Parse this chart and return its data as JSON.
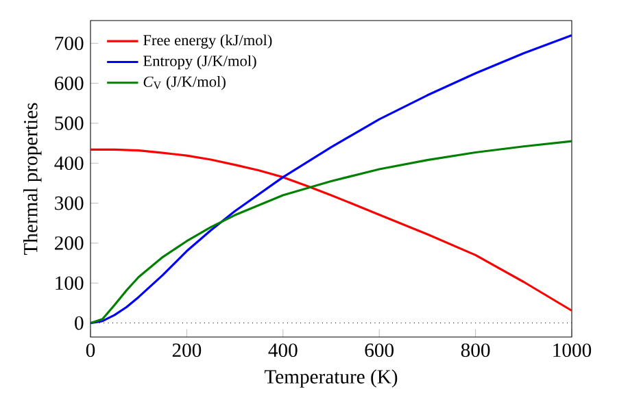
{
  "chart_data": {
    "type": "line",
    "xlabel": "Temperature (K)",
    "ylabel": "Thermal properties",
    "xlim": [
      0,
      1000
    ],
    "ylim": [
      -35,
      757
    ],
    "xticks": [
      0,
      200,
      400,
      600,
      800,
      1000
    ],
    "yticks": [
      0,
      100,
      200,
      300,
      400,
      500,
      600,
      700
    ],
    "legend": "top left",
    "grid": false,
    "marker": "none",
    "line_style": "solid",
    "series": [
      {
        "name": "Free energy (kJ/mol)",
        "color": "#ff0000",
        "x": [
          0,
          50,
          100,
          150,
          200,
          250,
          300,
          350,
          400,
          450,
          500,
          600,
          700,
          800,
          900,
          1000
        ],
        "values": [
          434,
          434,
          432,
          426,
          419,
          409,
          396,
          382,
          365,
          343,
          320,
          271,
          222,
          170,
          103,
          31
        ]
      },
      {
        "name": "Entropy (J/K/mol)",
        "color": "#0000ff",
        "x": [
          0,
          25,
          50,
          75,
          100,
          150,
          200,
          250,
          300,
          400,
          500,
          600,
          700,
          800,
          900,
          1000
        ],
        "values": [
          0,
          5,
          20,
          40,
          65,
          120,
          180,
          232,
          280,
          365,
          440,
          510,
          570,
          625,
          675,
          720
        ]
      },
      {
        "name": "*C*$_{V}$ (J/K/mol)",
        "color": "#008000",
        "x": [
          0,
          25,
          50,
          75,
          100,
          150,
          200,
          250,
          300,
          400,
          500,
          600,
          700,
          800,
          900,
          1000
        ],
        "values": [
          0,
          10,
          45,
          82,
          115,
          165,
          205,
          240,
          270,
          320,
          355,
          385,
          408,
          427,
          442,
          455
        ]
      }
    ],
    "ref_lines": [
      {
        "axis": "y",
        "value": 0,
        "color": "#000000",
        "line_style": "dotted"
      }
    ]
  }
}
